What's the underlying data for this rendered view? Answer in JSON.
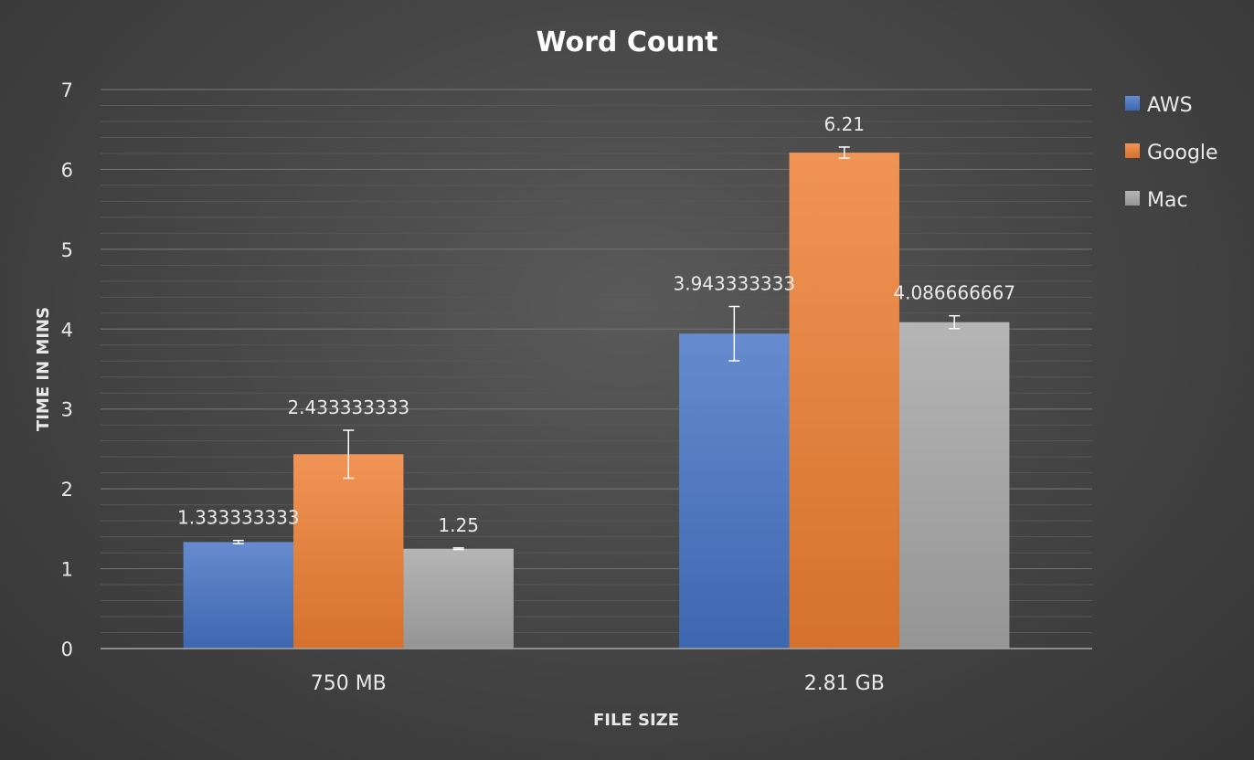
{
  "chart_data": {
    "type": "bar",
    "title": "Word Count",
    "xlabel": "FILE SIZE",
    "ylabel": "TIME IN MINS",
    "categories": [
      "750 MB",
      "2.81 GB"
    ],
    "ylim": [
      0,
      7
    ],
    "yticks": [
      "0",
      "1",
      "2",
      "3",
      "4",
      "5",
      "6",
      "7"
    ],
    "grid": true,
    "legend_position": "right",
    "series": [
      {
        "name": "AWS",
        "color": "#4472c4",
        "values": [
          1.333333333,
          3.943333333
        ],
        "labels": [
          "1.333333333",
          "3.943333333"
        ],
        "error": [
          0.02,
          0.34
        ]
      },
      {
        "name": "Google",
        "color": "#ed7d31",
        "values": [
          2.433333333,
          6.21
        ],
        "labels": [
          "2.433333333",
          "6.21"
        ],
        "error": [
          0.3,
          0.07
        ]
      },
      {
        "name": "Mac",
        "color": "#a5a5a5",
        "values": [
          1.25,
          4.086666667
        ],
        "labels": [
          "1.25",
          "4.086666667"
        ],
        "error": [
          0.01,
          0.08
        ]
      }
    ]
  }
}
